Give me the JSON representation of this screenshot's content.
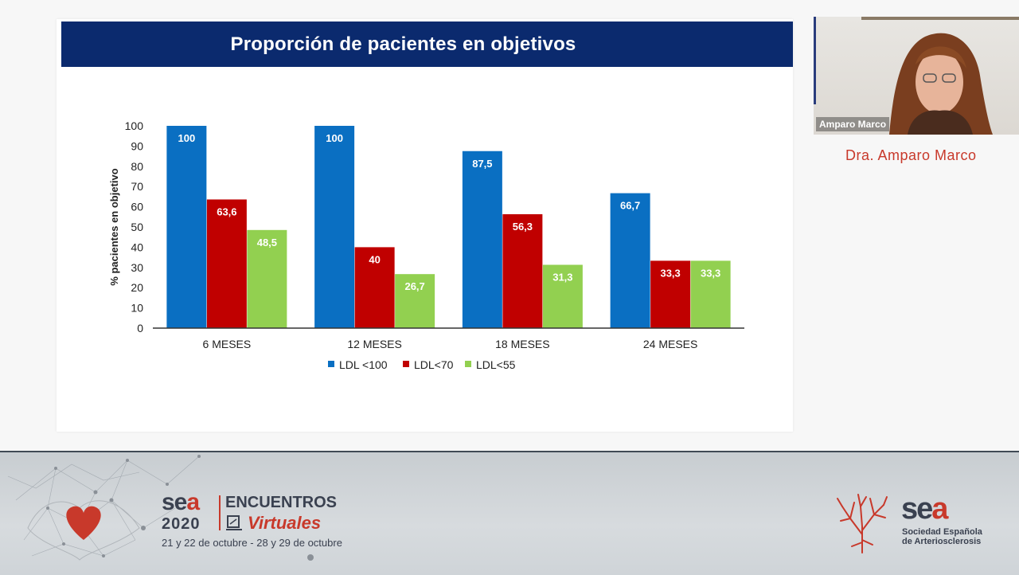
{
  "slide": {
    "title": "Proporción de pacientes en objetivos"
  },
  "chart_data": {
    "type": "bar",
    "title": "Proporción de pacientes en objetivos",
    "ylabel": "% pacientes en objetivo",
    "xlabel": "",
    "ylim": [
      0,
      100
    ],
    "yticks": [
      0,
      10,
      20,
      30,
      40,
      50,
      60,
      70,
      80,
      90,
      100
    ],
    "grid": false,
    "legend_position": "bottom",
    "categories": [
      "6 MESES",
      "12 MESES",
      "18 MESES",
      "24 MESES"
    ],
    "series": [
      {
        "name": "LDL <100",
        "color": "#0a6fc2",
        "values": [
          100,
          100,
          87.5,
          66.7
        ],
        "labels": [
          "100",
          "100",
          "87,5",
          "66,7"
        ]
      },
      {
        "name": "LDL<70",
        "color": "#c00000",
        "values": [
          63.6,
          40,
          56.3,
          33.3
        ],
        "labels": [
          "63,6",
          "40",
          "56,3",
          "33,3"
        ]
      },
      {
        "name": "LDL<55",
        "color": "#92d050",
        "values": [
          48.5,
          26.7,
          31.3,
          33.3
        ],
        "labels": [
          "48,5",
          "26,7",
          "31,3",
          "33,3"
        ]
      }
    ]
  },
  "webcam": {
    "name_tag": "Amparo Marco",
    "speaker_label": "Dra. Amparo Marco"
  },
  "footer": {
    "event_brand": "sea",
    "event_year": "2020",
    "event_title_1": "ENCUENTROS",
    "event_title_2": "Virtuales",
    "event_dates": "21 y 22 de octubre - 28 y 29 de octubre",
    "org_brand": "sea",
    "org_name_1": "Sociedad Española",
    "org_name_2": "de Arteriosclerosis"
  }
}
